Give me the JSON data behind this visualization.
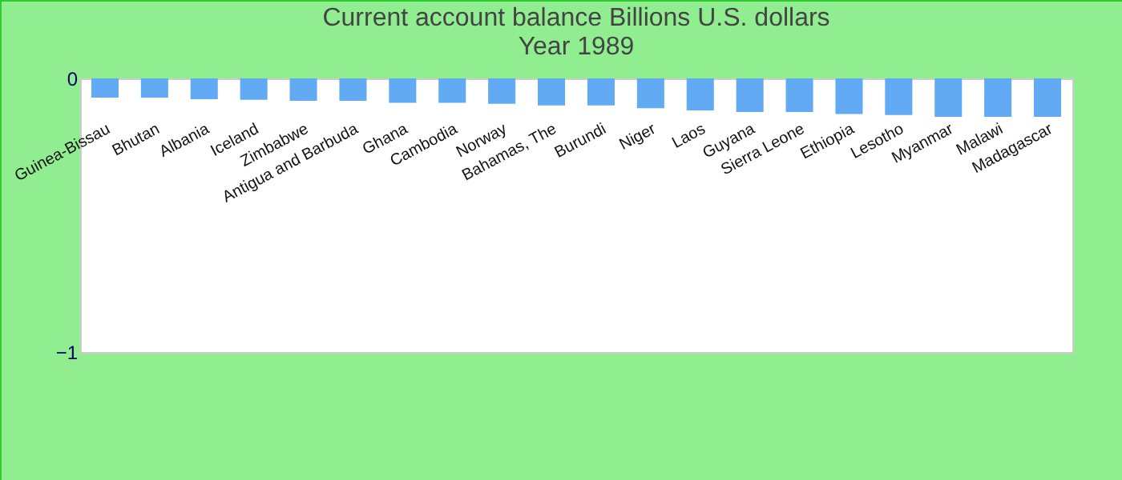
{
  "chart_data": {
    "type": "bar",
    "title": "Current account balance Billions U.S. dollars",
    "subtitle": "Year 1989",
    "categories": [
      "Guinea-Bissau",
      "Bhutan",
      "Albania",
      "Iceland",
      "Zimbabwe",
      "Antigua and Barbuda",
      "Ghana",
      "Cambodia",
      "Norway",
      "Bahamas, The",
      "Burundi",
      "Niger",
      "Laos",
      "Guyana",
      "Sierra Leone",
      "Ethiopia",
      "Lesotho",
      "Myanmar",
      "Malawi",
      "Madagascar"
    ],
    "values": [
      -0.07,
      -0.07,
      -0.076,
      -0.078,
      -0.082,
      -0.082,
      -0.089,
      -0.089,
      -0.093,
      -0.099,
      -0.099,
      -0.109,
      -0.117,
      -0.123,
      -0.123,
      -0.13,
      -0.134,
      -0.14,
      -0.14,
      -0.14
    ],
    "color": "#62aaf4",
    "ylim": [
      -1,
      0
    ],
    "yticks": [
      -1,
      0
    ],
    "grid": false
  }
}
